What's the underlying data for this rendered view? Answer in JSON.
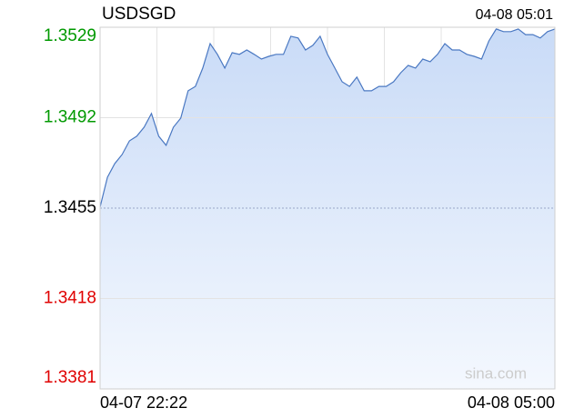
{
  "chart_data": {
    "type": "line",
    "title": "USDSGD",
    "timestamp": "04-08 05:01",
    "xlabels": [
      "04-07 22:22",
      "04-08 05:00"
    ],
    "watermark": "sina.com",
    "ylim": [
      1.3381,
      1.3529
    ],
    "yticks": [
      1.3381,
      1.3418,
      1.3455,
      1.3492,
      1.3529
    ],
    "base": 1.3455,
    "up_color": "#009900",
    "down_color": "#e00000",
    "base_color": "#000000",
    "color": "#4a78c2",
    "grid": true,
    "values": [
      1.34554,
      1.34676,
      1.34732,
      1.34769,
      1.34825,
      1.34844,
      1.34881,
      1.34937,
      1.34844,
      1.34807,
      1.34881,
      1.34918,
      1.3503,
      1.35048,
      1.35123,
      1.35223,
      1.35179,
      1.35123,
      1.35186,
      1.35179,
      1.35197,
      1.35179,
      1.3516,
      1.35171,
      1.35179,
      1.35179,
      1.35253,
      1.35246,
      1.35197,
      1.35216,
      1.35253,
      1.35179,
      1.35123,
      1.35067,
      1.35048,
      1.35086,
      1.3503,
      1.3503,
      1.35048,
      1.35048,
      1.35067,
      1.35104,
      1.35134,
      1.35123,
      1.3516,
      1.35149,
      1.35179,
      1.35223,
      1.35197,
      1.35197,
      1.35179,
      1.35171,
      1.3516,
      1.35234,
      1.35283,
      1.35272,
      1.35272,
      1.35283,
      1.3526,
      1.3526,
      1.35246,
      1.35272,
      1.35283
    ]
  }
}
